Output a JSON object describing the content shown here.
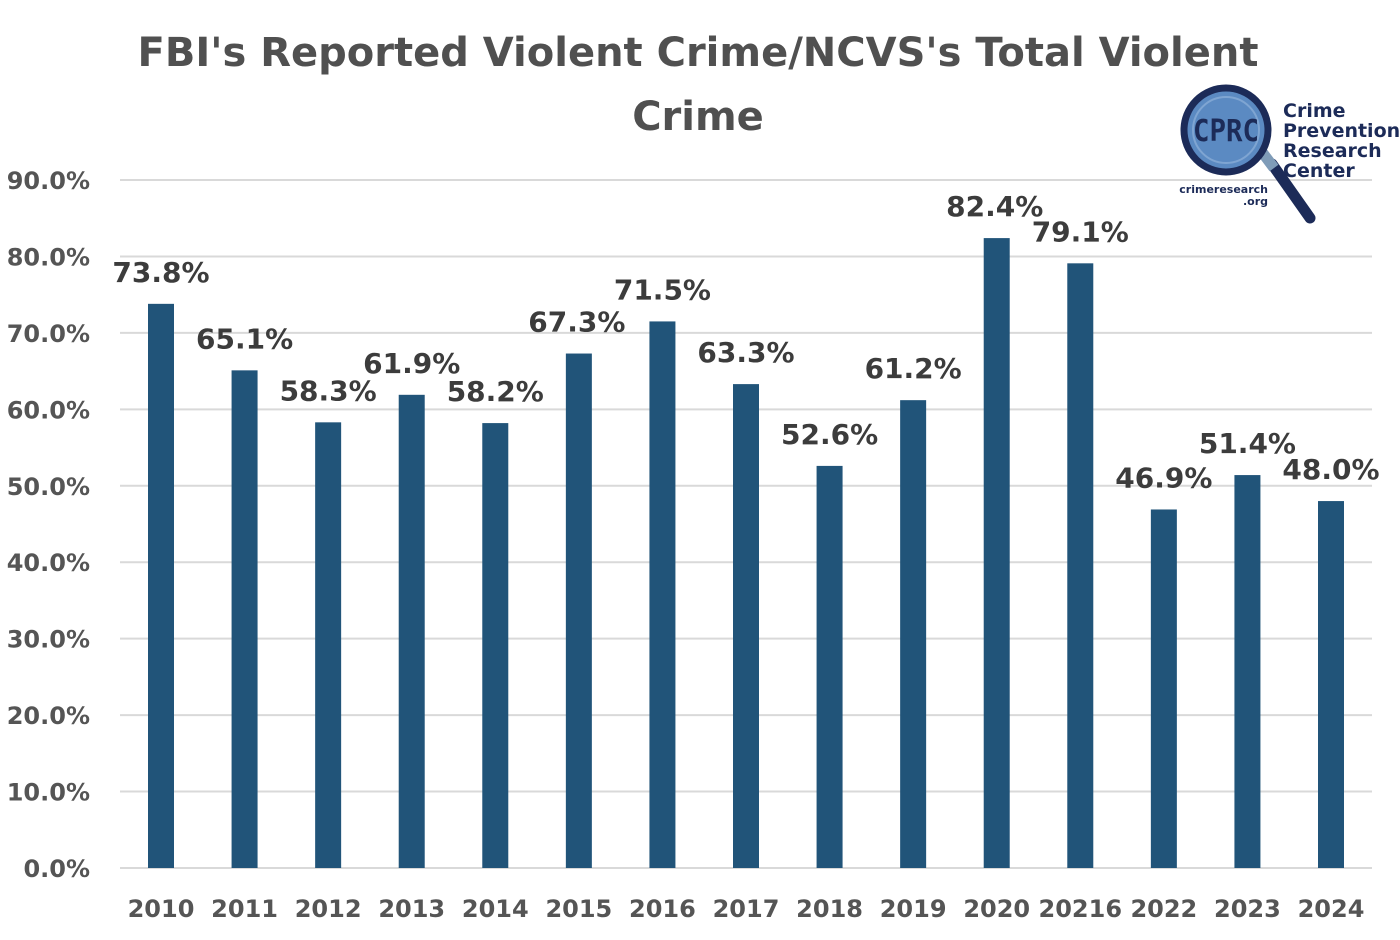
{
  "chart_data": {
    "type": "bar",
    "title_lines": [
      "FBI's Reported Violent Crime/NCVS's Total Violent",
      "Crime"
    ],
    "xlabel": "",
    "ylabel": "",
    "categories": [
      "2010",
      "2011",
      "2012",
      "2013",
      "2014",
      "2015",
      "2016",
      "2017",
      "2018",
      "2019",
      "2020",
      "20216",
      "2022",
      "2023",
      "2024"
    ],
    "values": [
      73.8,
      65.1,
      58.3,
      61.9,
      58.2,
      67.3,
      71.5,
      63.3,
      52.6,
      61.2,
      82.4,
      79.1,
      46.9,
      51.4,
      48.0
    ],
    "data_labels": [
      "73.8%",
      "65.1%",
      "58.3%",
      "61.9%",
      "58.2%",
      "67.3%",
      "71.5%",
      "63.3%",
      "52.6%",
      "61.2%",
      "82.4%",
      "79.1%",
      "46.9%",
      "51.4%",
      "48.0%"
    ],
    "ylim": [
      0,
      90
    ],
    "yticks": [
      0,
      10,
      20,
      30,
      40,
      50,
      60,
      70,
      80,
      90
    ],
    "ytick_labels": [
      "0.0%",
      "10.0%",
      "20.0%",
      "30.0%",
      "40.0%",
      "50.0%",
      "60.0%",
      "70.0%",
      "80.0%",
      "90.0%"
    ],
    "grid": true,
    "legend": "none",
    "bar_color": "#215479",
    "grid_color": "#d9d9d9"
  },
  "logo": {
    "badge_text": "CPRC",
    "name_lines": [
      "Crime",
      "Prevention",
      "Research",
      "Center"
    ],
    "url_lines": [
      "crimeresearch",
      ".org"
    ],
    "dark_color": "#1c2b58",
    "lens_color": "#5b8ac2"
  }
}
